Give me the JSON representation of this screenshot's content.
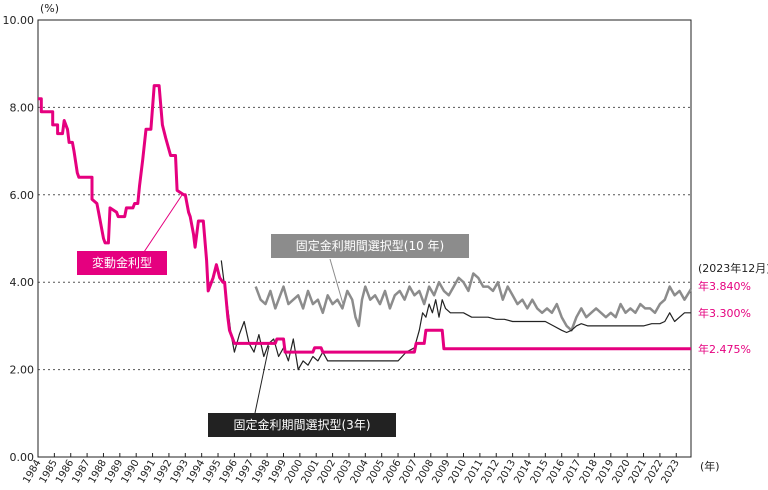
{
  "chart_data": {
    "type": "line",
    "y_unit": "(%)",
    "x_unit": "(年)",
    "ylim": [
      0,
      10
    ],
    "xlim": [
      1984,
      2023.9
    ],
    "y_ticks": [
      "0.00",
      "2.00",
      "4.00",
      "6.00",
      "8.00",
      "10.00"
    ],
    "x_ticks": [
      "1984",
      "1985",
      "1986",
      "1987",
      "1988",
      "1989",
      "1990",
      "1991",
      "1992",
      "1993",
      "1994",
      "1995",
      "1996",
      "1997",
      "1998",
      "1999",
      "2000",
      "2001",
      "2002",
      "2003",
      "2004",
      "2005",
      "2006",
      "2007",
      "2008",
      "2009",
      "2010",
      "2011",
      "2012",
      "2013",
      "2014",
      "2015",
      "2016",
      "2017",
      "2018",
      "2019",
      "2020",
      "2021",
      "2022",
      "2023"
    ],
    "grid": "horizontal dotted",
    "end_date_label": "(2023年12月)",
    "series": [
      {
        "name": "変動金利型",
        "color": "#e5007f",
        "end_label": "年2.475%",
        "x": [
          1984.0,
          1984.2,
          1984.2,
          1984.9,
          1984.9,
          1985.2,
          1985.2,
          1985.5,
          1985.6,
          1985.8,
          1985.9,
          1986.1,
          1986.2,
          1986.4,
          1986.5,
          1987.3,
          1987.3,
          1987.6,
          1987.7,
          1988.0,
          1988.1,
          1988.3,
          1988.4,
          1988.8,
          1988.9,
          1989.3,
          1989.4,
          1989.8,
          1989.9,
          1990.1,
          1990.2,
          1990.4,
          1990.6,
          1990.9,
          1991.1,
          1991.4,
          1991.6,
          1991.8,
          1992.1,
          1992.4,
          1992.5,
          1992.9,
          1993.0,
          1993.2,
          1993.3,
          1993.5,
          1993.6,
          1993.8,
          1994.1,
          1994.3,
          1994.4,
          1994.7,
          1994.9,
          1995.1,
          1995.3,
          1995.4,
          1995.5,
          1995.6,
          1995.7,
          1995.9,
          1996.0,
          1998.5,
          1998.6,
          1999.0,
          1999.1,
          2000.8,
          2000.9,
          2001.3,
          2001.4,
          2007.0,
          2007.1,
          2007.6,
          2007.7,
          2008.7,
          2008.8,
          2023.9
        ],
        "y": [
          8.2,
          8.2,
          7.9,
          7.9,
          7.6,
          7.6,
          7.4,
          7.4,
          7.7,
          7.5,
          7.2,
          7.2,
          7.0,
          6.5,
          6.4,
          6.4,
          5.9,
          5.8,
          5.6,
          5.0,
          4.9,
          4.9,
          5.7,
          5.6,
          5.5,
          5.5,
          5.7,
          5.7,
          5.8,
          5.8,
          6.2,
          6.8,
          7.5,
          7.5,
          8.5,
          8.5,
          7.6,
          7.3,
          6.9,
          6.9,
          6.1,
          6.0,
          6.0,
          5.6,
          5.5,
          5.1,
          4.8,
          5.4,
          5.4,
          4.5,
          3.8,
          4.1,
          4.4,
          4.1,
          4.0,
          4.0,
          3.6,
          3.2,
          2.9,
          2.7,
          2.6,
          2.6,
          2.7,
          2.7,
          2.4,
          2.4,
          2.5,
          2.5,
          2.4,
          2.4,
          2.6,
          2.6,
          2.9,
          2.9,
          2.475,
          2.475
        ]
      },
      {
        "name": "固定金利期間選択型(10 年)",
        "color": "#8c8c8c",
        "end_label": "年3.840%",
        "x": [
          1997.3,
          1997.6,
          1997.9,
          1998.2,
          1998.5,
          1998.8,
          1999.0,
          1999.3,
          1999.6,
          1999.9,
          2000.2,
          2000.5,
          2000.8,
          2001.1,
          2001.4,
          2001.7,
          2002.0,
          2002.3,
          2002.6,
          2002.9,
          2003.2,
          2003.4,
          2003.6,
          2003.8,
          2004.0,
          2004.3,
          2004.6,
          2004.9,
          2005.2,
          2005.5,
          2005.8,
          2006.1,
          2006.4,
          2006.7,
          2007.0,
          2007.3,
          2007.6,
          2007.9,
          2008.2,
          2008.5,
          2008.8,
          2009.1,
          2009.4,
          2009.7,
          2010.0,
          2010.3,
          2010.6,
          2010.9,
          2011.2,
          2011.5,
          2011.8,
          2012.1,
          2012.4,
          2012.7,
          2013.0,
          2013.3,
          2013.6,
          2013.9,
          2014.2,
          2014.5,
          2014.8,
          2015.1,
          2015.4,
          2015.7,
          2016.0,
          2016.3,
          2016.6,
          2016.9,
          2017.2,
          2017.5,
          2017.8,
          2018.1,
          2018.4,
          2018.7,
          2019.0,
          2019.3,
          2019.6,
          2019.9,
          2020.2,
          2020.5,
          2020.8,
          2021.1,
          2021.4,
          2021.7,
          2022.0,
          2022.3,
          2022.6,
          2022.9,
          2023.2,
          2023.5,
          2023.9
        ],
        "y": [
          3.9,
          3.6,
          3.5,
          3.8,
          3.4,
          3.7,
          3.9,
          3.5,
          3.6,
          3.7,
          3.4,
          3.8,
          3.5,
          3.6,
          3.3,
          3.7,
          3.5,
          3.6,
          3.4,
          3.8,
          3.6,
          3.2,
          3.0,
          3.6,
          3.9,
          3.6,
          3.7,
          3.5,
          3.8,
          3.4,
          3.7,
          3.8,
          3.6,
          3.9,
          3.7,
          3.8,
          3.5,
          3.9,
          3.7,
          4.0,
          3.8,
          3.7,
          3.9,
          4.1,
          4.0,
          3.8,
          4.2,
          4.1,
          3.9,
          3.9,
          3.8,
          4.0,
          3.6,
          3.9,
          3.7,
          3.5,
          3.6,
          3.4,
          3.6,
          3.4,
          3.3,
          3.4,
          3.3,
          3.5,
          3.2,
          3.0,
          2.9,
          3.2,
          3.4,
          3.2,
          3.3,
          3.4,
          3.3,
          3.2,
          3.3,
          3.2,
          3.5,
          3.3,
          3.4,
          3.3,
          3.5,
          3.4,
          3.4,
          3.3,
          3.5,
          3.6,
          3.9,
          3.7,
          3.8,
          3.6,
          3.84
        ]
      },
      {
        "name": "固定金利期間選択型(3年)",
        "color": "#222222",
        "end_label": "年3.300%",
        "x": [
          1995.2,
          1995.4,
          1995.6,
          1995.8,
          1996.0,
          1996.3,
          1996.6,
          1996.9,
          1997.2,
          1997.5,
          1997.8,
          1998.1,
          1998.4,
          1998.7,
          1999.0,
          1999.3,
          1999.6,
          1999.9,
          2000.2,
          2000.5,
          2000.8,
          2001.1,
          2001.4,
          2001.7,
          2002.0,
          2002.5,
          2003.0,
          2003.5,
          2004.0,
          2004.5,
          2005.0,
          2005.5,
          2006.0,
          2006.5,
          2007.0,
          2007.3,
          2007.5,
          2007.7,
          2007.9,
          2008.1,
          2008.3,
          2008.5,
          2008.7,
          2008.9,
          2009.2,
          2009.6,
          2010.0,
          2010.5,
          2011.0,
          2011.5,
          2012.0,
          2012.5,
          2013.0,
          2013.5,
          2014.0,
          2014.5,
          2015.0,
          2015.5,
          2016.0,
          2016.3,
          2016.6,
          2016.9,
          2017.2,
          2017.6,
          2018.0,
          2018.5,
          2019.0,
          2019.5,
          2020.0,
          2020.5,
          2021.0,
          2021.5,
          2022.0,
          2022.3,
          2022.6,
          2022.9,
          2023.2,
          2023.5,
          2023.9
        ],
        "y": [
          4.5,
          3.9,
          3.4,
          2.8,
          2.4,
          2.8,
          3.1,
          2.6,
          2.4,
          2.8,
          2.3,
          2.6,
          2.7,
          2.3,
          2.5,
          2.2,
          2.7,
          2.0,
          2.2,
          2.1,
          2.3,
          2.2,
          2.4,
          2.2,
          2.2,
          2.2,
          2.2,
          2.2,
          2.2,
          2.2,
          2.2,
          2.2,
          2.2,
          2.4,
          2.5,
          2.9,
          3.3,
          3.2,
          3.5,
          3.3,
          3.6,
          3.2,
          3.6,
          3.4,
          3.3,
          3.3,
          3.3,
          3.2,
          3.2,
          3.2,
          3.15,
          3.15,
          3.1,
          3.1,
          3.1,
          3.1,
          3.1,
          3.0,
          2.9,
          2.85,
          2.9,
          3.0,
          3.05,
          3.0,
          3.0,
          3.0,
          3.0,
          3.0,
          3.0,
          3.0,
          3.0,
          3.05,
          3.05,
          3.1,
          3.3,
          3.1,
          3.2,
          3.3,
          3.3
        ]
      }
    ]
  }
}
